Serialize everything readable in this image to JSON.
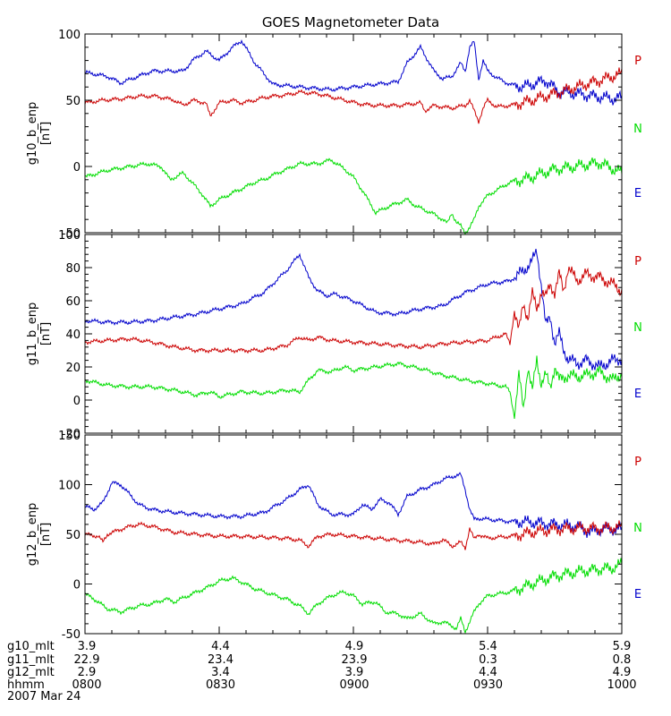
{
  "title": "GOES Magnetometer Data",
  "date": "2007 Mar 24",
  "colors": {
    "P": "#cc0000",
    "N": "#00dd00",
    "E": "#0000cc",
    "axis": "#000000"
  },
  "legend": [
    "P",
    "N",
    "E"
  ],
  "footer": {
    "labels": [
      "g10_mlt",
      "g11_mlt",
      "g12_mlt",
      "hhmm"
    ],
    "columns": [
      [
        "3.9",
        "22.9",
        "2.9",
        "0800"
      ],
      [
        "4.4",
        "23.4",
        "3.4",
        "0830"
      ],
      [
        "4.9",
        "23.9",
        "3.9",
        "0900"
      ],
      [
        "5.4",
        "0.3",
        "4.4",
        "0930"
      ],
      [
        "5.9",
        "0.8",
        "4.9",
        "1000"
      ]
    ]
  },
  "chart_data": [
    {
      "type": "line",
      "ylabel": "g10_b_enp",
      "yunit": "[nT]",
      "ylim": [
        -50,
        100
      ],
      "yticks": [
        100,
        50,
        0,
        -50
      ],
      "xlim": [
        0,
        120
      ],
      "xunit": "minutes after 0800",
      "series": [
        {
          "name": "E",
          "color": "#0000cc",
          "x": [
            0,
            5,
            8,
            15,
            22,
            24,
            27,
            30,
            33,
            35,
            38,
            42,
            48,
            55,
            60,
            65,
            70,
            72,
            75,
            78,
            80,
            82,
            84,
            85,
            86,
            87,
            88,
            89,
            90,
            92,
            95,
            98,
            100,
            103,
            106,
            110,
            114,
            118,
            120
          ],
          "y": [
            71,
            68,
            63,
            72,
            72,
            80,
            87,
            80,
            90,
            95,
            78,
            62,
            60,
            58,
            60,
            62,
            64,
            78,
            90,
            72,
            66,
            68,
            78,
            72,
            90,
            94,
            66,
            80,
            72,
            67,
            62,
            60,
            62,
            65,
            56,
            55,
            53,
            51,
            52
          ]
        },
        {
          "name": "P",
          "color": "#cc0000",
          "x": [
            0,
            4,
            8,
            12,
            16,
            20,
            22,
            24,
            27,
            28,
            30,
            33,
            35,
            38,
            40,
            42,
            45,
            48,
            52,
            58,
            62,
            65,
            70,
            75,
            76,
            78,
            82,
            85,
            86,
            87,
            88,
            89,
            90,
            92,
            95,
            100,
            105,
            110,
            115,
            120
          ],
          "y": [
            48,
            50,
            51,
            53,
            53,
            50,
            46,
            50,
            48,
            38,
            48,
            50,
            48,
            50,
            52,
            53,
            54,
            56,
            55,
            50,
            47,
            46,
            46,
            48,
            42,
            46,
            44,
            46,
            50,
            42,
            34,
            44,
            50,
            45,
            46,
            50,
            55,
            60,
            65,
            70
          ]
        },
        {
          "name": "N",
          "color": "#00dd00",
          "x": [
            0,
            5,
            10,
            14,
            17,
            19,
            22,
            26,
            28,
            30,
            33,
            38,
            40,
            43,
            48,
            52,
            55,
            58,
            60,
            62,
            65,
            68,
            72,
            74,
            76,
            78,
            80,
            81,
            82,
            83,
            84,
            85,
            86,
            87,
            88,
            90,
            92,
            95,
            100,
            105,
            110,
            115,
            120
          ],
          "y": [
            -8,
            -3,
            0,
            2,
            0,
            -10,
            -5,
            -20,
            -30,
            -25,
            -20,
            -12,
            -10,
            -5,
            2,
            2,
            5,
            -2,
            -8,
            -18,
            -35,
            -30,
            -25,
            -30,
            -33,
            -36,
            -40,
            -43,
            -35,
            -42,
            -45,
            -50,
            -46,
            -40,
            -30,
            -22,
            -18,
            -12,
            -8,
            -2,
            0,
            3,
            -5
          ]
        }
      ]
    },
    {
      "type": "line",
      "ylabel": "g11_b_enp",
      "yunit": "[nT]",
      "ylim": [
        -20,
        100
      ],
      "yticks": [
        100,
        80,
        60,
        40,
        20,
        0,
        -20
      ],
      "xlim": [
        0,
        120
      ],
      "xunit": "minutes after 0800",
      "series": [
        {
          "name": "E",
          "color": "#0000cc",
          "x": [
            0,
            5,
            10,
            15,
            20,
            25,
            30,
            35,
            40,
            45,
            48,
            50,
            52,
            54,
            56,
            60,
            65,
            70,
            75,
            80,
            85,
            90,
            95,
            98,
            100,
            101,
            102,
            103,
            104,
            105,
            106,
            107,
            108,
            110,
            112,
            115,
            118,
            120
          ],
          "y": [
            48,
            47,
            47,
            48,
            50,
            52,
            55,
            58,
            65,
            78,
            88,
            74,
            66,
            63,
            64,
            60,
            53,
            52,
            55,
            57,
            65,
            70,
            72,
            78,
            84,
            90,
            70,
            45,
            50,
            35,
            40,
            30,
            25,
            22,
            24,
            20,
            24,
            25
          ]
        },
        {
          "name": "P",
          "color": "#cc0000",
          "x": [
            0,
            5,
            10,
            15,
            20,
            25,
            30,
            35,
            40,
            45,
            48,
            50,
            52,
            55,
            60,
            65,
            70,
            75,
            80,
            85,
            90,
            94,
            95,
            96,
            97,
            98,
            99,
            100,
            101,
            102,
            103,
            104,
            105,
            106,
            107,
            108,
            110,
            112,
            115,
            118,
            120
          ],
          "y": [
            35,
            36,
            37,
            35,
            32,
            30,
            30,
            30,
            30,
            33,
            38,
            36,
            38,
            36,
            35,
            34,
            33,
            32,
            34,
            35,
            36,
            40,
            34,
            54,
            42,
            58,
            50,
            64,
            55,
            66,
            62,
            70,
            65,
            76,
            66,
            80,
            72,
            76,
            74,
            70,
            66
          ]
        },
        {
          "name": "N",
          "color": "#00dd00",
          "x": [
            0,
            5,
            10,
            15,
            20,
            25,
            28,
            30,
            35,
            40,
            45,
            48,
            50,
            52,
            55,
            58,
            60,
            65,
            70,
            75,
            80,
            85,
            90,
            94,
            95,
            96,
            97,
            98,
            99,
            100,
            101,
            102,
            103,
            104,
            105,
            106,
            108,
            110,
            112,
            115,
            118,
            120
          ],
          "y": [
            12,
            9,
            8,
            8,
            6,
            3,
            5,
            2,
            5,
            4,
            6,
            5,
            12,
            18,
            17,
            20,
            18,
            20,
            22,
            19,
            15,
            12,
            10,
            8,
            5,
            -10,
            15,
            -5,
            20,
            5,
            25,
            10,
            15,
            8,
            20,
            12,
            15,
            14,
            15,
            17,
            12,
            16
          ]
        }
      ]
    },
    {
      "type": "line",
      "ylabel": "g12_b_enp",
      "yunit": "[nT]",
      "ylim": [
        -50,
        150
      ],
      "yticks": [
        150,
        100,
        50,
        0,
        -50
      ],
      "xlim": [
        0,
        120
      ],
      "xunit": "minutes after 0800",
      "series": [
        {
          "name": "E",
          "color": "#0000cc",
          "x": [
            0,
            2,
            4,
            6,
            8,
            10,
            12,
            15,
            18,
            20,
            25,
            30,
            35,
            40,
            45,
            48,
            50,
            52,
            55,
            60,
            62,
            64,
            66,
            68,
            70,
            72,
            75,
            78,
            80,
            82,
            84,
            85,
            86,
            87,
            88,
            90,
            95,
            100,
            105,
            110,
            113,
            115,
            118,
            120
          ],
          "y": [
            78,
            75,
            82,
            102,
            100,
            90,
            80,
            75,
            73,
            72,
            70,
            68,
            68,
            72,
            85,
            95,
            100,
            80,
            70,
            70,
            80,
            75,
            85,
            82,
            70,
            88,
            95,
            100,
            105,
            108,
            110,
            95,
            75,
            65,
            66,
            65,
            63,
            62,
            60,
            58,
            52,
            55,
            55,
            55
          ]
        },
        {
          "name": "P",
          "color": "#cc0000",
          "x": [
            0,
            3,
            4,
            5,
            8,
            10,
            12,
            15,
            20,
            25,
            30,
            35,
            40,
            45,
            48,
            50,
            52,
            55,
            60,
            65,
            70,
            75,
            78,
            80,
            82,
            84,
            85,
            86,
            87,
            88,
            90,
            95,
            100,
            105,
            110,
            115,
            120
          ],
          "y": [
            50,
            48,
            42,
            50,
            55,
            58,
            60,
            58,
            52,
            50,
            48,
            48,
            47,
            46,
            44,
            38,
            48,
            50,
            48,
            46,
            44,
            42,
            40,
            45,
            38,
            42,
            36,
            56,
            45,
            50,
            46,
            48,
            52,
            55,
            56,
            56,
            57
          ]
        },
        {
          "name": "N",
          "color": "#00dd00",
          "x": [
            0,
            2,
            5,
            8,
            10,
            12,
            15,
            18,
            20,
            25,
            28,
            30,
            33,
            35,
            38,
            40,
            45,
            48,
            50,
            52,
            55,
            58,
            60,
            62,
            65,
            67,
            70,
            72,
            75,
            78,
            80,
            82,
            83,
            84,
            85,
            86,
            87,
            88,
            90,
            95,
            100,
            105,
            110,
            115,
            118,
            120
          ],
          "y": [
            -10,
            -15,
            -25,
            -28,
            -25,
            -22,
            -20,
            -15,
            -18,
            -8,
            -2,
            3,
            6,
            2,
            -5,
            -8,
            -15,
            -22,
            -30,
            -20,
            -12,
            -8,
            -12,
            -20,
            -18,
            -28,
            -30,
            -35,
            -30,
            -40,
            -38,
            -42,
            -45,
            -35,
            -48,
            -38,
            -28,
            -20,
            -12,
            -8,
            0,
            8,
            12,
            15,
            16,
            20
          ]
        }
      ]
    }
  ]
}
